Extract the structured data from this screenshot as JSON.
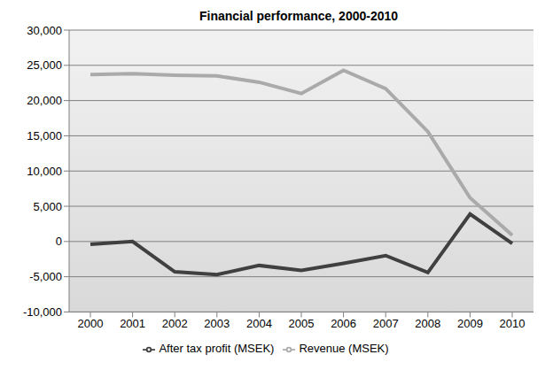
{
  "chart_data": {
    "type": "line",
    "title": "Financial performance, 2000-2010",
    "categories": [
      "2000",
      "2001",
      "2002",
      "2003",
      "2004",
      "2005",
      "2006",
      "2007",
      "2008",
      "2009",
      "2010"
    ],
    "series": [
      {
        "name": "Revenue  (MSEK)",
        "color": "#aaaaaa",
        "values": [
          23700,
          23800,
          23600,
          23500,
          22600,
          21000,
          24300,
          21700,
          15600,
          6200,
          900
        ]
      },
      {
        "name": "After tax profit (MSEK)",
        "color": "#404040",
        "values": [
          -400,
          0,
          -4300,
          -4700,
          -3400,
          -4100,
          -3100,
          -2000,
          -4400,
          3900,
          -300
        ]
      }
    ],
    "ylim": [
      -10000,
      30000
    ],
    "yticks": [
      {
        "value": -10000,
        "label": "-10,000"
      },
      {
        "value": -5000,
        "label": "-5,000"
      },
      0,
      {
        "value": 5000,
        "label": "5,000"
      },
      {
        "value": 10000,
        "label": "10,000"
      },
      {
        "value": 15000,
        "label": "15,000"
      },
      {
        "value": 20000,
        "label": "20,000"
      },
      {
        "value": 25000,
        "label": "25,000"
      },
      {
        "value": 30000,
        "label": "30,000"
      }
    ],
    "grid": true,
    "legend": "bottom"
  }
}
